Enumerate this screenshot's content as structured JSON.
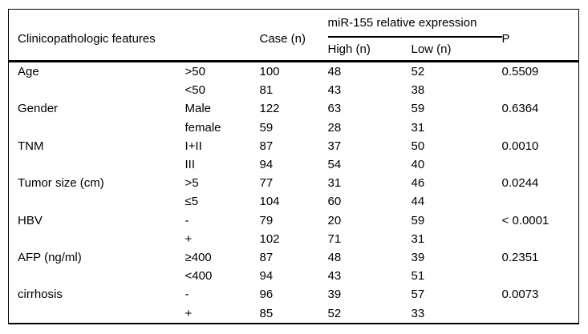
{
  "colors": {
    "background": "#ffffff",
    "text": "#000000",
    "rule": "#000000"
  },
  "table": {
    "header": {
      "feature": "Clinicopathologic features",
      "case": "Case (n)",
      "group": "miR-155 relative expression",
      "high": "High (n)",
      "low": "Low (n)",
      "p": "P"
    },
    "rows": [
      {
        "feature": "Age",
        "sub": ">50",
        "case": "100",
        "high": "48",
        "low": "52",
        "p": "0.5509"
      },
      {
        "feature": "",
        "sub": "<50",
        "case": "81",
        "high": "43",
        "low": "38",
        "p": ""
      },
      {
        "feature": "Gender",
        "sub": "Male",
        "case": "122",
        "high": "63",
        "low": "59",
        "p": "0.6364"
      },
      {
        "feature": "",
        "sub": "female",
        "case": "59",
        "high": "28",
        "low": "31",
        "p": ""
      },
      {
        "feature": "TNM",
        "sub": "I+II",
        "case": "87",
        "high": "37",
        "low": "50",
        "p": "0.0010"
      },
      {
        "feature": "",
        "sub": "III",
        "case": "94",
        "high": "54",
        "low": "40",
        "p": ""
      },
      {
        "feature": "Tumor size (cm)",
        "sub": ">5",
        "case": "77",
        "high": "31",
        "low": "46",
        "p": "0.0244"
      },
      {
        "feature": "",
        "sub": "≤5",
        "case": "104",
        "high": "60",
        "low": "44",
        "p": ""
      },
      {
        "feature": "HBV",
        "sub": "-",
        "case": "79",
        "high": "20",
        "low": "59",
        "p": "< 0.0001"
      },
      {
        "feature": "",
        "sub": "+",
        "case": "102",
        "high": "71",
        "low": "31",
        "p": ""
      },
      {
        "feature": "AFP (ng/ml)",
        "sub": "≥400",
        "case": "87",
        "high": "48",
        "low": "39",
        "p": "0.2351"
      },
      {
        "feature": "",
        "sub": "<400",
        "case": "94",
        "high": "43",
        "low": "51",
        "p": ""
      },
      {
        "feature": "cirrhosis",
        "sub": "-",
        "case": "96",
        "high": "39",
        "low": "57",
        "p": "0.0073"
      },
      {
        "feature": "",
        "sub": "+",
        "case": "85",
        "high": "52",
        "low": "33",
        "p": ""
      }
    ]
  }
}
